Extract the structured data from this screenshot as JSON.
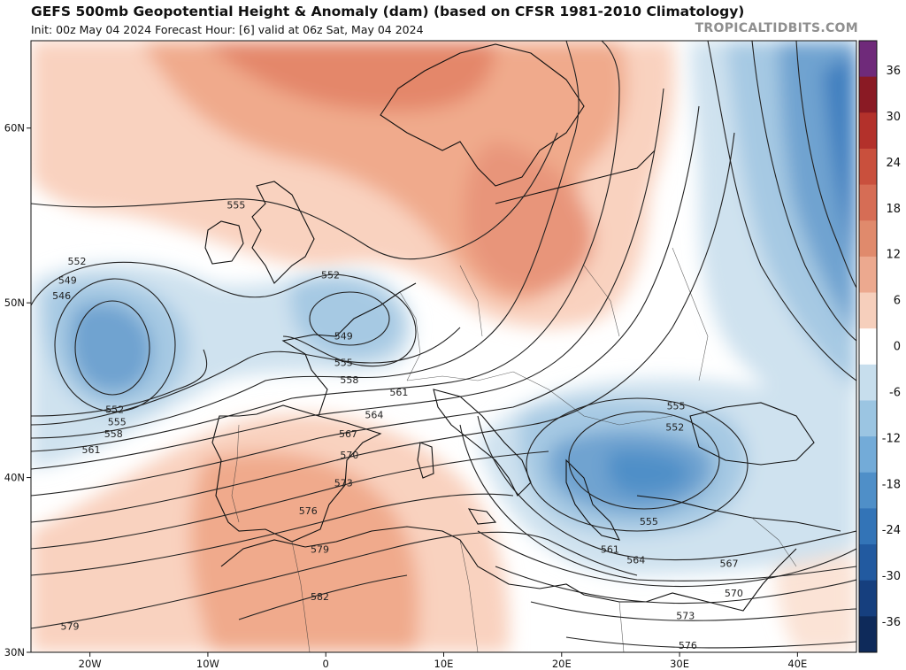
{
  "header": {
    "title": "GEFS 500mb Geopotential Height & Anomaly (dam) (based on CFSR 1981-2010 Climatology)",
    "subtitle": "Init: 00z May 04 2024   Forecast Hour: [6]   valid at 06z Sat, May 04 2024",
    "brand": "TROPICALTIDBITS.COM"
  },
  "map": {
    "lon_range": [
      -25,
      45
    ],
    "lat_range": [
      30,
      65
    ],
    "lat_ticks": [
      {
        "value": 30,
        "label": "30N"
      },
      {
        "value": 40,
        "label": "40N"
      },
      {
        "value": 50,
        "label": "50N"
      },
      {
        "value": 60,
        "label": "60N"
      }
    ],
    "lon_ticks": [
      {
        "value": -20,
        "label": "20W"
      },
      {
        "value": -10,
        "label": "10W"
      },
      {
        "value": 0,
        "label": "0"
      },
      {
        "value": 10,
        "label": "10E"
      },
      {
        "value": 20,
        "label": "20E"
      },
      {
        "value": 30,
        "label": "30E"
      },
      {
        "value": 40,
        "label": "40E"
      }
    ],
    "contour_labels": [
      {
        "text": "552",
        "lon": -21.1,
        "lat": 52.4
      },
      {
        "text": "549",
        "lon": -21.9,
        "lat": 51.3
      },
      {
        "text": "546",
        "lon": -22.4,
        "lat": 50.4
      },
      {
        "text": "555",
        "lon": -7.6,
        "lat": 55.6
      },
      {
        "text": "552",
        "lon": 0.4,
        "lat": 51.6
      },
      {
        "text": "549",
        "lon": 1.5,
        "lat": 48.1
      },
      {
        "text": "555",
        "lon": 1.5,
        "lat": 46.6
      },
      {
        "text": "558",
        "lon": 2.0,
        "lat": 45.6
      },
      {
        "text": "561",
        "lon": 6.2,
        "lat": 44.9
      },
      {
        "text": "564",
        "lon": 4.1,
        "lat": 43.6
      },
      {
        "text": "567",
        "lon": 1.9,
        "lat": 42.5
      },
      {
        "text": "570",
        "lon": 2.0,
        "lat": 41.3
      },
      {
        "text": "573",
        "lon": 1.5,
        "lat": 39.7
      },
      {
        "text": "576",
        "lon": -1.5,
        "lat": 38.1
      },
      {
        "text": "579",
        "lon": -0.5,
        "lat": 35.9
      },
      {
        "text": "582",
        "lon": -0.5,
        "lat": 33.2
      },
      {
        "text": "579",
        "lon": -21.7,
        "lat": 31.5
      },
      {
        "text": "552",
        "lon": -17.9,
        "lat": 43.9
      },
      {
        "text": "555",
        "lon": -17.7,
        "lat": 43.2
      },
      {
        "text": "558",
        "lon": -18.0,
        "lat": 42.5
      },
      {
        "text": "561",
        "lon": -19.9,
        "lat": 41.6
      },
      {
        "text": "555",
        "lon": 29.7,
        "lat": 44.1
      },
      {
        "text": "552",
        "lon": 29.6,
        "lat": 42.9
      },
      {
        "text": "555",
        "lon": 27.4,
        "lat": 37.5
      },
      {
        "text": "561",
        "lon": 24.1,
        "lat": 35.9
      },
      {
        "text": "564",
        "lon": 26.3,
        "lat": 35.3
      },
      {
        "text": "567",
        "lon": 34.2,
        "lat": 35.1
      },
      {
        "text": "570",
        "lon": 34.6,
        "lat": 33.4
      },
      {
        "text": "573",
        "lon": 30.5,
        "lat": 32.1
      },
      {
        "text": "576",
        "lon": 30.7,
        "lat": 30.4
      }
    ]
  },
  "colorbar": {
    "labels": [
      "36",
      "30",
      "24",
      "18",
      "12",
      "6",
      "0",
      "-6",
      "-12",
      "-18",
      "-24",
      "-30",
      "-36"
    ],
    "colors": [
      "#6f2a7a",
      "#8a1a24",
      "#b3312b",
      "#c9503d",
      "#d66d55",
      "#e08a6c",
      "#eca98f",
      "#f6cfbc",
      "#ffffff",
      "#c7deed",
      "#9bc5e2",
      "#73abd8",
      "#4f8fc8",
      "#3374b7",
      "#225aa0",
      "#163f7e",
      "#0e2a5a"
    ]
  },
  "style": {
    "warm_light": "#f9d2bf",
    "warm_mid": "#f0aa8c",
    "warm_strong": "#e4876a",
    "cool_light": "#cfe2ef",
    "cool_mid": "#a6c9e3",
    "cool_strong": "#6fa3d0",
    "cool_deep": "#3f7fbf"
  }
}
